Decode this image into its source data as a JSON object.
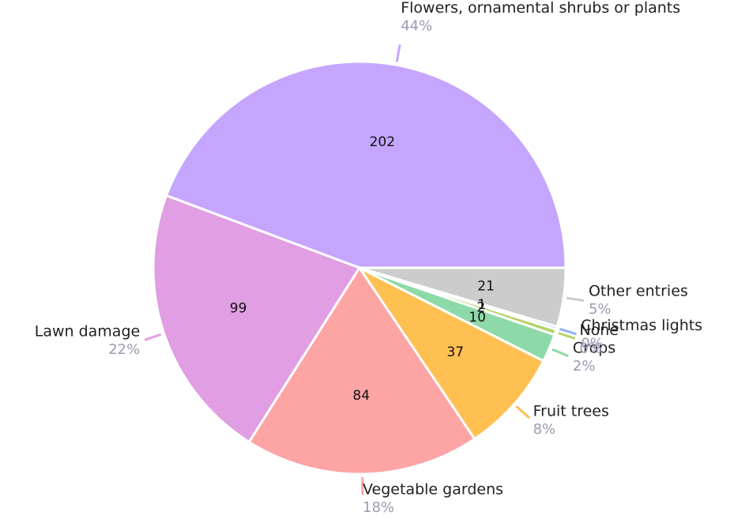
{
  "chart_data": {
    "type": "pie",
    "categories": [
      "Flowers, ornamental shrubs or plants",
      "Lawn damage",
      "Vegetable gardens",
      "Fruit trees",
      "Crops",
      "None",
      "Christmas lights",
      "Other entries"
    ],
    "values": [
      202,
      99,
      84,
      37,
      10,
      2,
      1,
      21
    ],
    "percent_labels": [
      "44%",
      "22%",
      "18%",
      "8%",
      "2%",
      "0%",
      "0%",
      "5%"
    ],
    "colors": [
      "#c4a6ff",
      "#e19ee2",
      "#fda4a4",
      "#ffc052",
      "#8ed9a8",
      "#b5d36a",
      "#8fb3f0",
      "#cccccc"
    ]
  }
}
